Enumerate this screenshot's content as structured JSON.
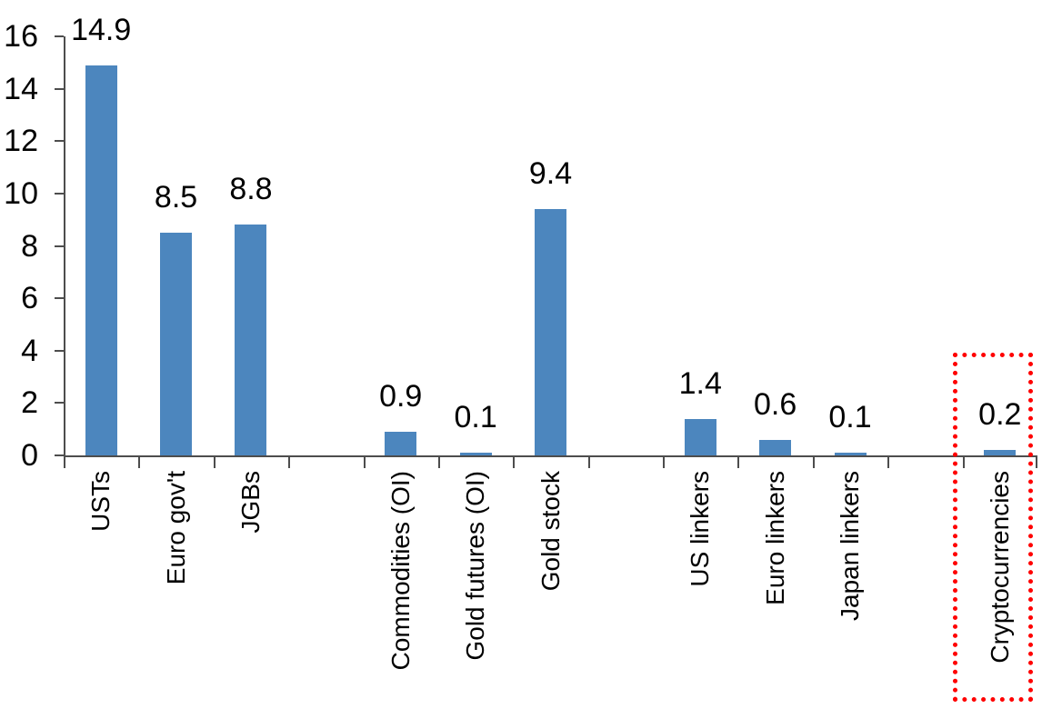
{
  "chart_data": {
    "type": "bar",
    "title": "",
    "xlabel": "",
    "ylabel": "",
    "categories": [
      "USTs",
      "Euro gov't",
      "JGBs",
      "Commodities (OI)",
      "Gold futures (OI)",
      "Gold stock",
      "US linkers",
      "Euro linkers",
      "Japan linkers",
      "Cryptocurrencies"
    ],
    "values": [
      14.9,
      8.5,
      8.8,
      0.9,
      0.1,
      9.4,
      1.4,
      0.6,
      0.1,
      0.2
    ],
    "data_labels": [
      "14.9",
      "8.5",
      "8.8",
      "0.9",
      "0.1",
      "9.4",
      "1.4",
      "0.6",
      "0.1",
      "0.2"
    ],
    "groups": [
      [
        "USTs",
        "Euro gov't",
        "JGBs"
      ],
      [
        "Commodities (OI)",
        "Gold futures (OI)",
        "Gold stock"
      ],
      [
        "US linkers",
        "Euro linkers",
        "Japan linkers"
      ],
      [
        "Cryptocurrencies"
      ]
    ],
    "slot_indices": [
      0,
      1,
      2,
      4,
      5,
      6,
      8,
      9,
      10,
      12
    ],
    "n_slots": 13,
    "ylim": [
      0,
      16
    ],
    "yticks": [
      0,
      2,
      4,
      6,
      8,
      10,
      12,
      14,
      16
    ],
    "grid": false,
    "legend": false,
    "bar_color": "#4C86BE",
    "axis_color": "#4D4D4D",
    "text_color": "#000000",
    "highlight": {
      "type": "dotted-box",
      "color": "#FF0000",
      "category": "Cryptocurrencies"
    }
  }
}
